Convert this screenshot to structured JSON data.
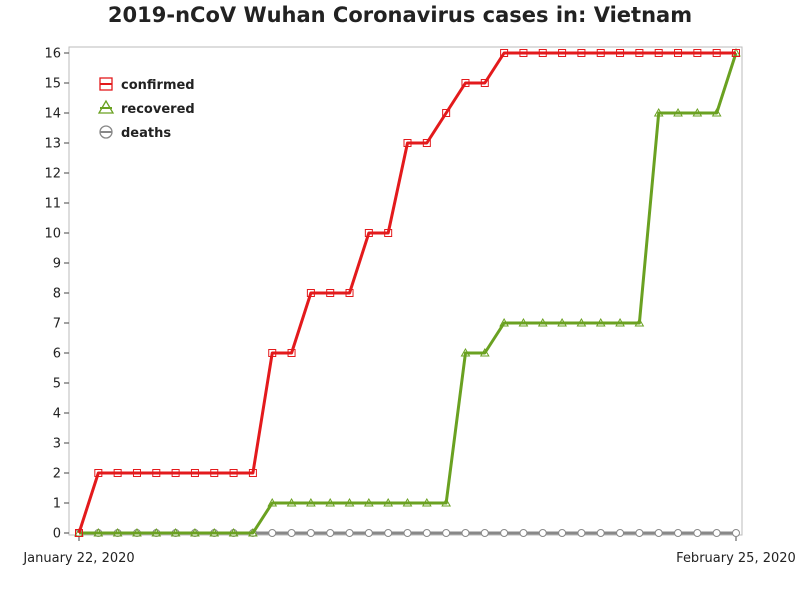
{
  "chart_data": {
    "type": "line",
    "title": "2019-nCoV Wuhan Coronavirus cases in: Vietnam",
    "xlabel": "",
    "ylabel": "",
    "x_start_label": "January 22, 2020",
    "x_end_label": "February 25, 2020",
    "x": [
      "2020-01-22",
      "2020-01-23",
      "2020-01-24",
      "2020-01-25",
      "2020-01-26",
      "2020-01-27",
      "2020-01-28",
      "2020-01-29",
      "2020-01-30",
      "2020-01-31",
      "2020-02-01",
      "2020-02-02",
      "2020-02-03",
      "2020-02-04",
      "2020-02-05",
      "2020-02-06",
      "2020-02-07",
      "2020-02-08",
      "2020-02-09",
      "2020-02-10",
      "2020-02-11",
      "2020-02-12",
      "2020-02-13",
      "2020-02-14",
      "2020-02-15",
      "2020-02-16",
      "2020-02-17",
      "2020-02-18",
      "2020-02-19",
      "2020-02-20",
      "2020-02-21",
      "2020-02-22",
      "2020-02-23",
      "2020-02-24",
      "2020-02-25"
    ],
    "ylim": [
      0,
      16
    ],
    "yticks": [
      0,
      1,
      2,
      3,
      4,
      5,
      6,
      7,
      8,
      9,
      10,
      11,
      12,
      13,
      14,
      15,
      16
    ],
    "grid": false,
    "legend_position": "top-left",
    "series": [
      {
        "name": "confirmed",
        "color": "#e31a1c",
        "marker": "square",
        "values": [
          0,
          2,
          2,
          2,
          2,
          2,
          2,
          2,
          2,
          2,
          6,
          6,
          8,
          8,
          8,
          10,
          10,
          13,
          13,
          14,
          15,
          15,
          16,
          16,
          16,
          16,
          16,
          16,
          16,
          16,
          16,
          16,
          16,
          16,
          16
        ]
      },
      {
        "name": "recovered",
        "color": "#6aa121",
        "marker": "triangle",
        "values": [
          0,
          0,
          0,
          0,
          0,
          0,
          0,
          0,
          0,
          0,
          1,
          1,
          1,
          1,
          1,
          1,
          1,
          1,
          1,
          1,
          6,
          6,
          7,
          7,
          7,
          7,
          7,
          7,
          7,
          7,
          14,
          14,
          14,
          14,
          16
        ]
      },
      {
        "name": "deaths",
        "color": "#888888",
        "marker": "circle",
        "values": [
          0,
          0,
          0,
          0,
          0,
          0,
          0,
          0,
          0,
          0,
          0,
          0,
          0,
          0,
          0,
          0,
          0,
          0,
          0,
          0,
          0,
          0,
          0,
          0,
          0,
          0,
          0,
          0,
          0,
          0,
          0,
          0,
          0,
          0,
          0
        ]
      }
    ]
  }
}
